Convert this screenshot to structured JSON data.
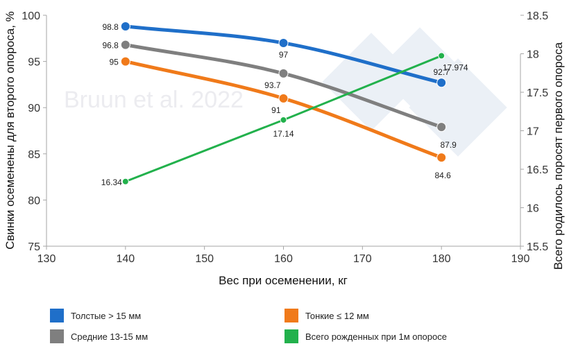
{
  "chart_data": {
    "type": "line",
    "watermark": "Bruun et al. 2022",
    "xlabel": "Вес при осеменении, кг",
    "ylabel": "Свинки осеменены для второго опороса, %",
    "y2label": "Всего родилось поросят первого опороса",
    "xlim": [
      130,
      190
    ],
    "ylim": [
      75,
      100
    ],
    "y2lim": [
      15.5,
      18.5
    ],
    "xticks": [
      "130",
      "140",
      "150",
      "160",
      "170",
      "180",
      "190"
    ],
    "yticks": [
      "75",
      "80",
      "85",
      "90",
      "95",
      "100"
    ],
    "y2ticks": [
      "15.5",
      "16",
      "16.5",
      "17",
      "17.5",
      "18",
      "18.5"
    ],
    "x": [
      140,
      160,
      180
    ],
    "series": [
      {
        "name": "Толстые > 15 мм",
        "axis": "left",
        "color": "#1f6fc9",
        "values": [
          98.8,
          97,
          92.7
        ],
        "labels": [
          "98.8",
          "97",
          "92.7"
        ]
      },
      {
        "name": "Средние 13-15 мм",
        "axis": "left",
        "color": "#7f7f7f",
        "values": [
          96.8,
          93.7,
          87.9
        ],
        "labels": [
          "96.8",
          "93.7",
          "87.9"
        ]
      },
      {
        "name": "Тонкие ≤ 12 мм",
        "axis": "left",
        "color": "#f07a1a",
        "values": [
          95,
          91,
          84.6
        ],
        "labels": [
          "95",
          "91",
          "84.6"
        ]
      },
      {
        "name": "Всего рожденных при 1м опоросе",
        "axis": "right",
        "color": "#22b14c",
        "values": [
          16.34,
          17.14,
          17.974
        ],
        "labels": [
          "16.34",
          "17.14",
          "17.974"
        ]
      }
    ],
    "legend_position": "bottom",
    "grid": false
  }
}
